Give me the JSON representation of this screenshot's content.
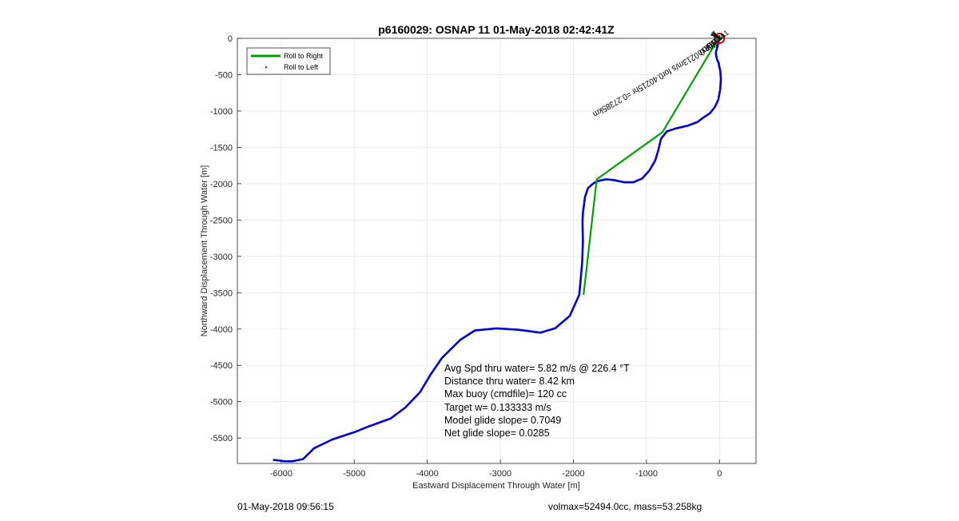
{
  "chart_data": {
    "type": "line",
    "title": "p6160029: OSNAP 11 01-May-2018 02:42:41Z",
    "xlabel": "Eastward Displacement Through Water [m]",
    "ylabel": "Northward Displacement Through Water [m]",
    "xlim": [
      -6600,
      500
    ],
    "ylim": [
      -5850,
      0
    ],
    "xticks": [
      -6000,
      -5000,
      -4000,
      -3000,
      -2000,
      -1000,
      0
    ],
    "yticks": [
      0,
      -500,
      -1000,
      -1500,
      -2000,
      -2500,
      -3000,
      -3500,
      -4000,
      -4500,
      -5000,
      -5500
    ],
    "grid": true,
    "legend_position": "top-left",
    "legend": [
      {
        "name": "Roll to Right",
        "color": "#00a000",
        "style": "line"
      },
      {
        "name": "Roll to Left",
        "color": "#ff0000",
        "style": "dot"
      }
    ],
    "series": [
      {
        "name": "track",
        "color": "#0000cc",
        "x": [
          -6100,
          -5950,
          -5850,
          -5700,
          -5550,
          -5300,
          -5000,
          -4800,
          -4500,
          -4300,
          -4100,
          -3950,
          -3800,
          -3550,
          -3350,
          -3050,
          -2750,
          -2450,
          -2250,
          -2050,
          -1920,
          -1880,
          -1870,
          -1875,
          -1870,
          -1840,
          -1800,
          -1720,
          -1650,
          -1550,
          -1450,
          -1300,
          -1180,
          -1060,
          -960,
          -880,
          -840,
          -800,
          -720,
          -600,
          -430,
          -300,
          -220,
          -130,
          -60,
          -15,
          10,
          20,
          10,
          -5,
          -10,
          -30,
          -40,
          -50,
          0
        ],
        "y": [
          -5800,
          -5820,
          -5820,
          -5790,
          -5640,
          -5520,
          -5420,
          -5340,
          -5230,
          -5080,
          -4870,
          -4620,
          -4400,
          -4150,
          -4020,
          -3990,
          -4010,
          -4050,
          -3990,
          -3820,
          -3530,
          -3100,
          -2800,
          -2520,
          -2400,
          -2180,
          -2060,
          -1990,
          -1960,
          -1940,
          -1950,
          -1980,
          -1980,
          -1930,
          -1820,
          -1680,
          -1550,
          -1380,
          -1280,
          -1240,
          -1200,
          -1150,
          -1090,
          -1030,
          -940,
          -840,
          -700,
          -560,
          -440,
          -380,
          -340,
          -300,
          -260,
          -200,
          0
        ]
      },
      {
        "name": "Roll to Right",
        "color": "#00a000",
        "x": [
          -1860,
          -1680,
          -780,
          -80,
          0
        ],
        "y": [
          -3520,
          -1940,
          -1290,
          -110,
          0
        ]
      }
    ],
    "surface_marker": {
      "x": 0,
      "y": 0,
      "color": "#dd0000"
    },
    "start_labels": [
      "0.0.B1",
      "1.4.1B1",
      "2.2.1B1",
      "0.2.1A1"
    ],
    "drift_label": "ttcp 0.0213m/s for0.40215hr =0.27385km",
    "annotations": [
      "Avg Spd thru water=  5.82 m/s @ 226.4 °T",
      "Distance thru water=  8.42 km",
      "Max buoy (cmdfile)= 120 cc",
      "Target w= 0.133333 m/s",
      "Model glide slope= 0.7049",
      "Net glide slope= 0.0285"
    ]
  },
  "footer": {
    "left": "01-May-2018 09:56:15",
    "right": "volmax=52494.0cc, mass=53.258kg"
  }
}
